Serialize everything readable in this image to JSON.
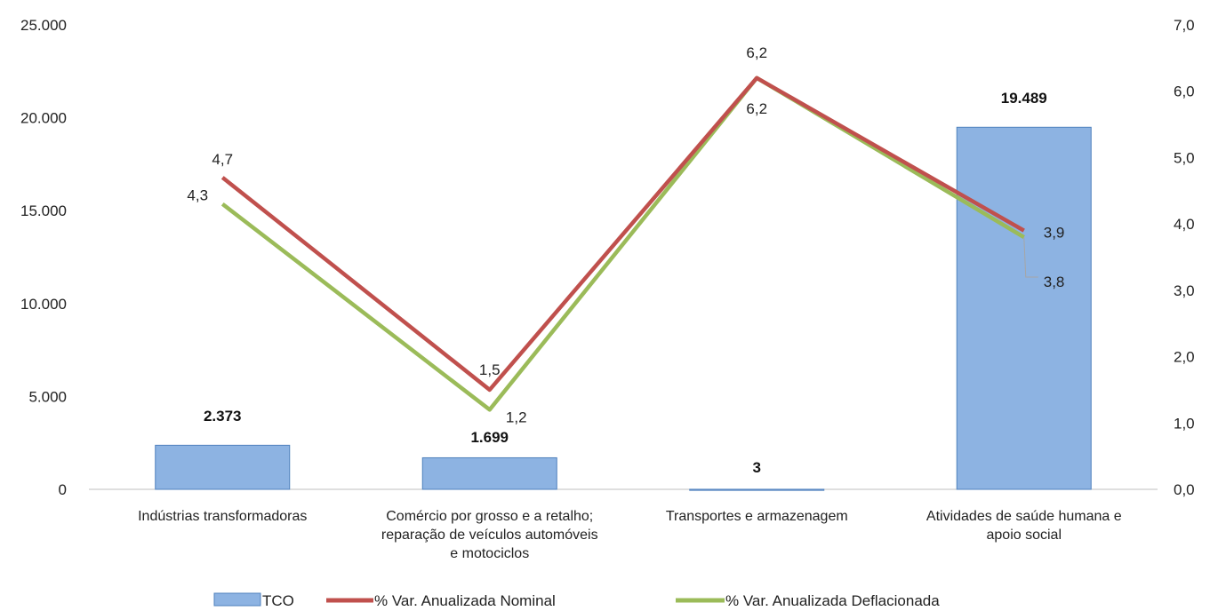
{
  "chart_data": {
    "type": "bar",
    "categories": [
      [
        "Indústrias transformadoras"
      ],
      [
        "Comércio por grosso e a retalho;",
        "reparação de veículos automóveis",
        "e motociclos"
      ],
      [
        "Transportes e armazenagem"
      ],
      [
        "Atividades de saúde humana e",
        "apoio  social"
      ]
    ],
    "bar_series": {
      "name": "TCO",
      "values": [
        2373,
        1699,
        3,
        19489
      ],
      "labels": [
        "2.373",
        "1.699",
        "3",
        "19.489"
      ],
      "color": "#8db3e2",
      "border": "#4f81bd"
    },
    "line_series": [
      {
        "name": "% Var. Anualizada Nominal",
        "values": [
          4.7,
          1.5,
          6.2,
          3.9
        ],
        "labels": [
          "4,7",
          "1,5",
          "6,2",
          "3,9"
        ],
        "color": "#c0504d"
      },
      {
        "name": "% Var. Anualizada Deflacionada",
        "values": [
          4.3,
          1.2,
          6.2,
          3.8
        ],
        "labels": [
          "4,3",
          "1,2",
          "6,2",
          "3,8"
        ],
        "color": "#9bbb59"
      }
    ],
    "y_left": {
      "lim": [
        0,
        25000
      ],
      "ticks": [
        0,
        5000,
        10000,
        15000,
        20000,
        25000
      ],
      "tick_labels": [
        "0",
        "5.000",
        "10.000",
        "15.000",
        "20.000",
        "25.000"
      ]
    },
    "y_right": {
      "lim": [
        0,
        7
      ],
      "ticks": [
        0,
        1,
        2,
        3,
        4,
        5,
        6,
        7
      ],
      "tick_labels": [
        "0,0",
        "1,0",
        "2,0",
        "3,0",
        "4,0",
        "5,0",
        "6,0",
        "7,0"
      ]
    },
    "gridlines": false,
    "legend_position": "bottom"
  }
}
